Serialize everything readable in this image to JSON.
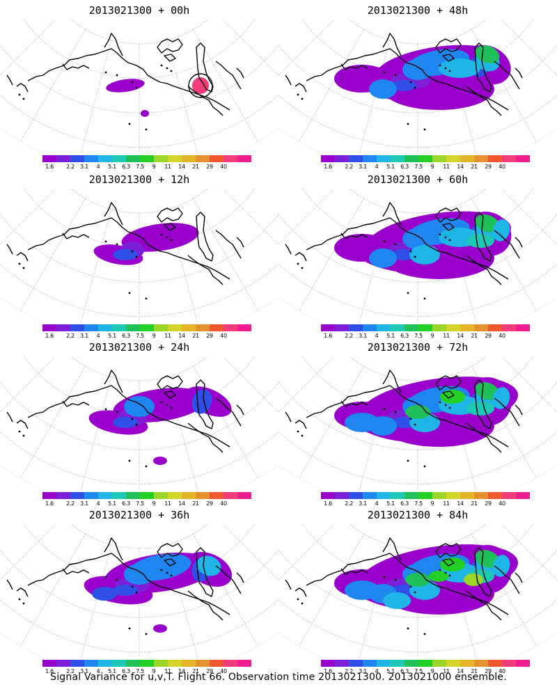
{
  "caption": "Signal Variance for u,v,T. Flight 66. Observation time 2013021300. 2013021000 ensemble.",
  "colorbar": {
    "tick_labels": [
      "1.6",
      "2.2",
      "3.1",
      "4",
      "5.1",
      "6.3",
      "7.5",
      "9",
      "11",
      "14",
      "21",
      "29",
      "40"
    ],
    "colors": [
      "#9a00cc",
      "#7d1fd6",
      "#2f4fe6",
      "#1f86f0",
      "#1fb5e6",
      "#1fc8b4",
      "#1fbf5a",
      "#23cf23",
      "#9bd62a",
      "#d4d42a",
      "#e6b42a",
      "#e69130",
      "#f0582d",
      "#f03c78",
      "#f01e8c"
    ]
  },
  "panels": [
    {
      "title": "2013021300 + 00h",
      "lead_hours": 0
    },
    {
      "title": "2013021300 + 48h",
      "lead_hours": 48
    },
    {
      "title": "2013021300 + 12h",
      "lead_hours": 12
    },
    {
      "title": "2013021300 + 60h",
      "lead_hours": 60
    },
    {
      "title": "2013021300 + 24h",
      "lead_hours": 24
    },
    {
      "title": "2013021300 + 72h",
      "lead_hours": 72
    },
    {
      "title": "2013021300 + 36h",
      "lead_hours": 36
    },
    {
      "title": "2013021300 + 84h",
      "lead_hours": 84
    }
  ]
}
